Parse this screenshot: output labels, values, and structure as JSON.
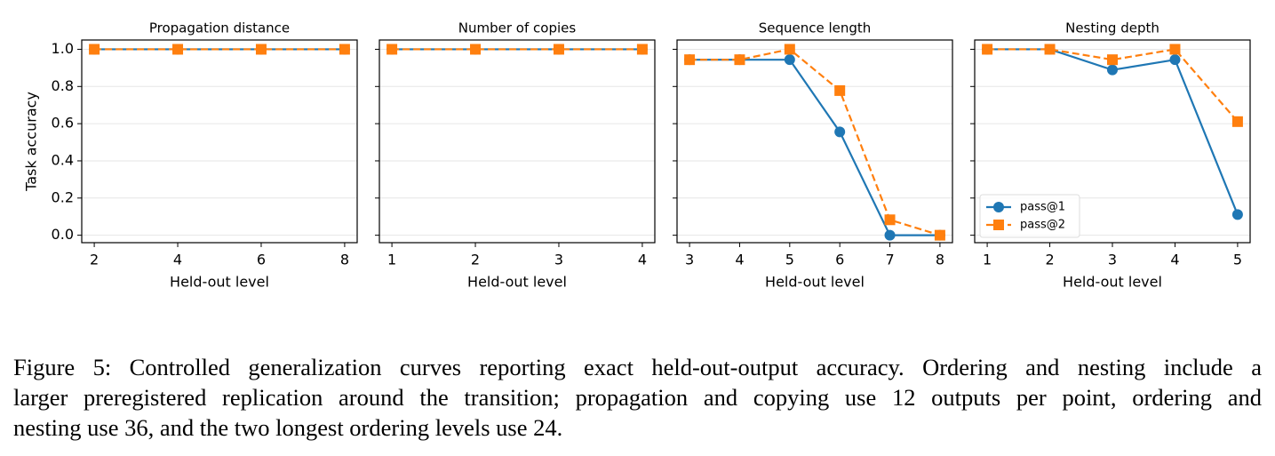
{
  "chart_data": [
    {
      "type": "line",
      "title": "Propagation distance",
      "xlabel": "Held-out level",
      "ylabel": "Task accuracy",
      "x": [
        2,
        4,
        6,
        8
      ],
      "xlim": [
        1.7,
        8.3
      ],
      "xticks": [
        2,
        4,
        6,
        8
      ],
      "ylim": [
        -0.04,
        1.05
      ],
      "yticks": [
        {
          "value": 0,
          "label": "0.0"
        },
        0.2,
        0.4,
        0.6,
        0.8,
        {
          "value": 1,
          "label": "1.0"
        }
      ],
      "ytick_labels": true,
      "grid": "y",
      "series": [
        {
          "color": "#1f77b4",
          "marker": "circle",
          "line_style": "solid",
          "values": [
            1,
            1,
            1,
            1
          ]
        },
        {
          "color": "#ff7f0e",
          "marker": "square",
          "line_style": "dashed",
          "values": [
            1,
            1,
            1,
            1
          ]
        }
      ]
    },
    {
      "type": "line",
      "title": "Number of copies",
      "xlabel": "Held-out level",
      "x": [
        1,
        2,
        3,
        4
      ],
      "xlim": [
        0.85,
        4.15
      ],
      "xticks": [
        1,
        2,
        3,
        4
      ],
      "ylim": [
        -0.04,
        1.05
      ],
      "yticks": [
        0,
        0.2,
        0.4,
        0.6,
        0.8,
        1
      ],
      "ytick_labels": false,
      "grid": "y",
      "series": [
        {
          "color": "#1f77b4",
          "marker": "circle",
          "line_style": "solid",
          "values": [
            1,
            1,
            1,
            1
          ]
        },
        {
          "color": "#ff7f0e",
          "marker": "square",
          "line_style": "dashed",
          "values": [
            1,
            1,
            1,
            1
          ]
        }
      ]
    },
    {
      "type": "line",
      "title": "Sequence length",
      "xlabel": "Held-out level",
      "x": [
        3,
        4,
        5,
        6,
        7,
        8
      ],
      "xlim": [
        2.75,
        8.25
      ],
      "xticks": [
        3,
        4,
        5,
        6,
        7,
        8
      ],
      "ylim": [
        -0.04,
        1.05
      ],
      "yticks": [
        0,
        0.2,
        0.4,
        0.6,
        0.8,
        1
      ],
      "ytick_labels": false,
      "grid": "y",
      "series": [
        {
          "color": "#1f77b4",
          "marker": "circle",
          "line_style": "solid",
          "values": [
            0.944,
            0.944,
            0.944,
            0.556,
            0,
            0
          ]
        },
        {
          "color": "#ff7f0e",
          "marker": "square",
          "line_style": "dashed",
          "values": [
            0.944,
            0.944,
            1,
            0.778,
            0.083,
            0
          ]
        }
      ]
    },
    {
      "type": "line",
      "title": "Nesting depth",
      "xlabel": "Held-out level",
      "x": [
        1,
        2,
        3,
        4,
        5
      ],
      "xlim": [
        0.8,
        5.2
      ],
      "xticks": [
        1,
        2,
        3,
        4,
        5
      ],
      "ylim": [
        -0.04,
        1.05
      ],
      "yticks": [
        0,
        0.2,
        0.4,
        0.6,
        0.8,
        1
      ],
      "ytick_labels": false,
      "grid": "y",
      "legend": "lower left",
      "series": [
        {
          "name": "pass@1",
          "color": "#1f77b4",
          "marker": "circle",
          "line_style": "solid",
          "values": [
            1,
            1,
            0.889,
            0.944,
            0.111
          ]
        },
        {
          "name": "pass@2",
          "color": "#ff7f0e",
          "marker": "square",
          "line_style": "dashed",
          "values": [
            1,
            1,
            0.944,
            1,
            0.611
          ]
        }
      ]
    }
  ],
  "caption": [
    "Figure 5: Controlled generalization curves reporting exact held-out-output accuracy. Ordering and nesting include a",
    "larger preregistered replication around the transition; propagation and copying use 12 outputs per point, ordering and",
    "nesting use 36, and the two longest ordering levels use 24."
  ]
}
